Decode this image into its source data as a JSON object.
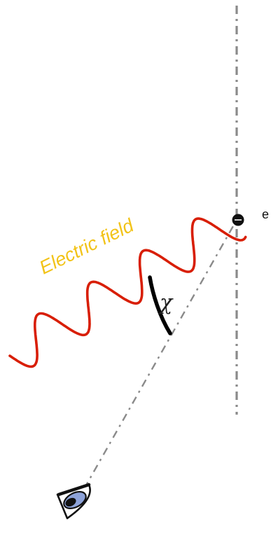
{
  "labels": {
    "electric_field": "Electric field",
    "angle_symbol": "χ",
    "charge": "e"
  },
  "colors": {
    "wave": "#d81e05",
    "field_label": "#f2c318",
    "dash_line": "#8a8a8a",
    "arc": "#000000",
    "eye_iris": "#8da2d8"
  },
  "icons": {
    "observer": "eye-icon",
    "particle": "electron-dot"
  }
}
